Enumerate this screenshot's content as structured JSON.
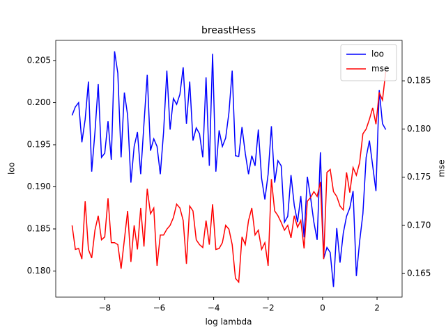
{
  "chart_data": {
    "type": "line",
    "title": "breastHess",
    "xlabel": "log lambda",
    "ylabel": "loo",
    "y2label": "mse",
    "x": [
      -9.2,
      -9.08,
      -8.96,
      -8.84,
      -8.72,
      -8.6,
      -8.48,
      -8.36,
      -8.24,
      -8.12,
      -8,
      -7.88,
      -7.76,
      -7.64,
      -7.52,
      -7.4,
      -7.28,
      -7.16,
      -7.04,
      -6.92,
      -6.8,
      -6.68,
      -6.56,
      -6.44,
      -6.32,
      -6.2,
      -6.08,
      -5.96,
      -5.84,
      -5.72,
      -5.6,
      -5.48,
      -5.36,
      -5.24,
      -5.12,
      -5,
      -4.88,
      -4.76,
      -4.64,
      -4.52,
      -4.4,
      -4.28,
      -4.16,
      -4.04,
      -3.92,
      -3.8,
      -3.68,
      -3.56,
      -3.44,
      -3.32,
      -3.2,
      -3.08,
      -2.96,
      -2.84,
      -2.72,
      -2.6,
      -2.48,
      -2.36,
      -2.24,
      -2.12,
      -2,
      -1.88,
      -1.76,
      -1.64,
      -1.52,
      -1.4,
      -1.28,
      -1.16,
      -1.04,
      -0.92,
      -0.8,
      -0.68,
      -0.56,
      -0.44,
      -0.32,
      -0.2,
      -0.08,
      0.04,
      0.16,
      0.28,
      0.4,
      0.52,
      0.64,
      0.76,
      0.88,
      1,
      1.12,
      1.24,
      1.36,
      1.48,
      1.6,
      1.72,
      1.84,
      1.96,
      2.08,
      2.2,
      2.32
    ],
    "series": [
      {
        "name": "loo",
        "color": "#0000ff",
        "axis": "y",
        "values": [
          0.1985,
          0.1995,
          0.2,
          0.1953,
          0.198,
          0.2025,
          0.1918,
          0.1965,
          0.2022,
          0.1935,
          0.194,
          0.1978,
          0.1932,
          0.2061,
          0.2035,
          0.1935,
          0.2012,
          0.1985,
          0.1905,
          0.1948,
          0.1965,
          0.1915,
          0.1975,
          0.2033,
          0.1943,
          0.1957,
          0.1948,
          0.1915,
          0.1965,
          0.2038,
          0.1968,
          0.2005,
          0.1998,
          0.201,
          0.2042,
          0.1975,
          0.2025,
          0.1955,
          0.197,
          0.1963,
          0.1935,
          0.203,
          0.1925,
          0.2058,
          0.1918,
          0.1967,
          0.1948,
          0.1958,
          0.1988,
          0.2038,
          0.1937,
          0.1936,
          0.1971,
          0.194,
          0.1915,
          0.1937,
          0.1925,
          0.1968,
          0.191,
          0.1885,
          0.1915,
          0.1972,
          0.1905,
          0.1931,
          0.1925,
          0.1858,
          0.1865,
          0.1914,
          0.1878,
          0.1858,
          0.1889,
          0.184,
          0.1912,
          0.1887,
          0.1858,
          0.1837,
          0.1941,
          0.1815,
          0.1828,
          0.1822,
          0.1781,
          0.1851,
          0.181,
          0.1845,
          0.1865,
          0.1875,
          0.1895,
          0.1794,
          0.1835,
          0.1868,
          0.1935,
          0.1955,
          0.1925,
          0.1895,
          0.2015,
          0.1975,
          0.1968
        ]
      },
      {
        "name": "mse",
        "color": "#ff0000",
        "axis": "y2",
        "values": [
          0.17,
          0.1675,
          0.1676,
          0.1665,
          0.1725,
          0.1675,
          0.1666,
          0.1695,
          0.171,
          0.1685,
          0.1688,
          0.1728,
          0.1682,
          0.1682,
          0.168,
          0.1655,
          0.1685,
          0.1715,
          0.1662,
          0.17,
          0.1675,
          0.1718,
          0.1678,
          0.1738,
          0.1712,
          0.1718,
          0.1658,
          0.169,
          0.169,
          0.1696,
          0.17,
          0.1708,
          0.1722,
          0.1718,
          0.1705,
          0.166,
          0.172,
          0.1715,
          0.1685,
          0.168,
          0.1677,
          0.1705,
          0.168,
          0.1722,
          0.1675,
          0.1676,
          0.1682,
          0.17,
          0.1696,
          0.168,
          0.1645,
          0.1641,
          0.1688,
          0.168,
          0.1705,
          0.1718,
          0.169,
          0.1695,
          0.1675,
          0.1682,
          0.1658,
          0.1748,
          0.1715,
          0.171,
          0.1703,
          0.1695,
          0.17,
          0.1687,
          0.171,
          0.1698,
          0.1705,
          0.1676,
          0.1725,
          0.1729,
          0.1735,
          0.173,
          0.1745,
          0.1665,
          0.1755,
          0.1758,
          0.1735,
          0.173,
          0.172,
          0.1716,
          0.1755,
          0.1734,
          0.176,
          0.1752,
          0.1765,
          0.1795,
          0.18,
          0.181,
          0.1822,
          0.1805,
          0.1838,
          0.183,
          0.186
        ]
      }
    ],
    "xlim": [
      -9.8,
      2.92
    ],
    "ylim": [
      0.1769,
      0.2074
    ],
    "y2lim": [
      0.16255,
      0.1892
    ],
    "xticks": [
      {
        "value": -8,
        "label": "−8"
      },
      {
        "value": -6,
        "label": "−6"
      },
      {
        "value": -4,
        "label": "−4"
      },
      {
        "value": -2,
        "label": "−2"
      },
      0,
      2
    ],
    "yticks": [
      {
        "value": 0.18,
        "label": "0.180"
      },
      0.185,
      {
        "value": 0.19,
        "label": "0.190"
      },
      0.195,
      {
        "value": 0.2,
        "label": "0.200"
      },
      0.205
    ],
    "y2ticks": [
      0.165,
      {
        "value": 0.17,
        "label": "0.170"
      },
      0.175,
      {
        "value": 0.18,
        "label": "0.180"
      },
      0.185
    ],
    "legend": "upper right",
    "grid": false
  }
}
